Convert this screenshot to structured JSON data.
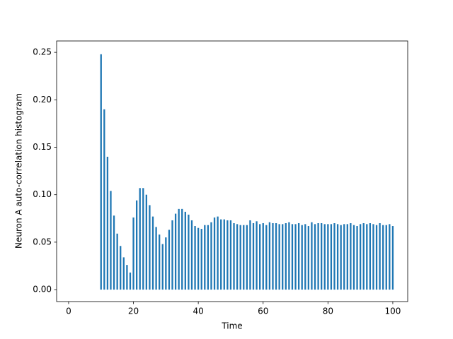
{
  "chart_data": {
    "type": "bar",
    "xlabel": "Time",
    "ylabel": "Neuron A auto-correlation histogram",
    "color": "#1f77b4",
    "x": [
      10,
      11,
      12,
      13,
      14,
      15,
      16,
      17,
      18,
      19,
      20,
      21,
      22,
      23,
      24,
      25,
      26,
      27,
      28,
      29,
      30,
      31,
      32,
      33,
      34,
      35,
      36,
      37,
      38,
      39,
      40,
      41,
      42,
      43,
      44,
      45,
      46,
      47,
      48,
      49,
      50,
      51,
      52,
      53,
      54,
      55,
      56,
      57,
      58,
      59,
      60,
      61,
      62,
      63,
      64,
      65,
      66,
      67,
      68,
      69,
      70,
      71,
      72,
      73,
      74,
      75,
      76,
      77,
      78,
      79,
      80,
      81,
      82,
      83,
      84,
      85,
      86,
      87,
      88,
      89,
      90,
      91,
      92,
      93,
      94,
      95,
      96,
      97,
      98,
      99,
      100
    ],
    "values": [
      0.248,
      0.19,
      0.14,
      0.104,
      0.078,
      0.059,
      0.046,
      0.034,
      0.026,
      0.018,
      0.076,
      0.094,
      0.107,
      0.107,
      0.1,
      0.089,
      0.077,
      0.066,
      0.058,
      0.048,
      0.055,
      0.063,
      0.073,
      0.08,
      0.085,
      0.085,
      0.082,
      0.079,
      0.073,
      0.067,
      0.065,
      0.064,
      0.068,
      0.068,
      0.071,
      0.076,
      0.077,
      0.074,
      0.074,
      0.073,
      0.073,
      0.07,
      0.069,
      0.068,
      0.068,
      0.068,
      0.073,
      0.07,
      0.072,
      0.069,
      0.07,
      0.068,
      0.071,
      0.07,
      0.07,
      0.069,
      0.069,
      0.07,
      0.071,
      0.069,
      0.069,
      0.07,
      0.068,
      0.069,
      0.067,
      0.071,
      0.069,
      0.07,
      0.07,
      0.069,
      0.069,
      0.069,
      0.07,
      0.069,
      0.068,
      0.069,
      0.069,
      0.07,
      0.068,
      0.067,
      0.069,
      0.07,
      0.069,
      0.07,
      0.069,
      0.068,
      0.07,
      0.068,
      0.068,
      0.069,
      0.067
    ],
    "xlim": [
      -3.7,
      104.6
    ],
    "xticks": [
      0,
      20,
      40,
      60,
      80,
      100
    ],
    "ylim": [
      -0.0126,
      0.262
    ],
    "yticks": [
      {
        "value": 0,
        "label": "0.00"
      },
      0.05,
      {
        "value": 0.1,
        "label": "0.10"
      },
      0.15,
      {
        "value": 0.2,
        "label": "0.20"
      },
      0.25
    ]
  }
}
